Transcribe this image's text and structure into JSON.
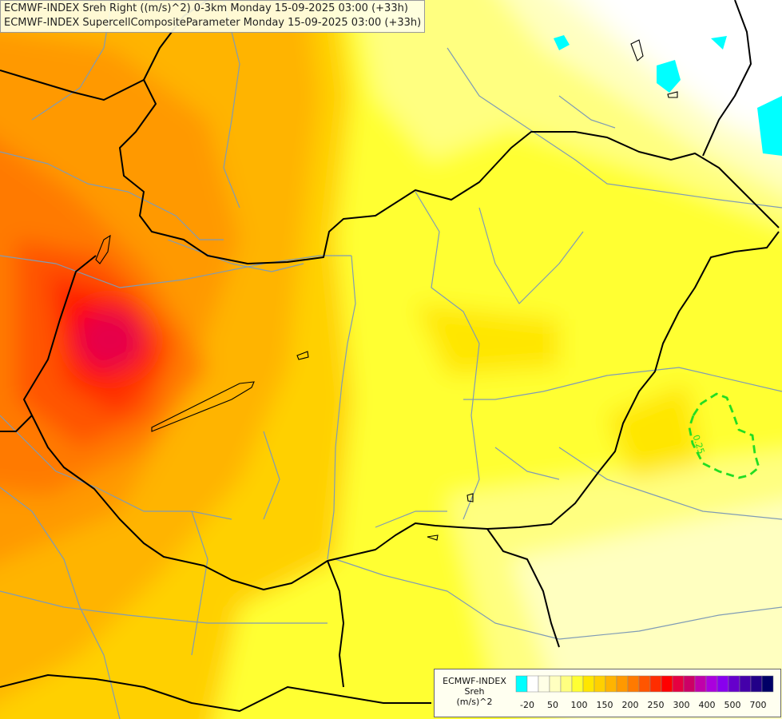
{
  "title_lines": [
    "ECMWF-INDEX Sreh Right ((m/s)^2) 0-3km Monday 15-09-2025 03:00 (+33h)",
    "ECMWF-INDEX SupercellCompositeParameter Monday 15-09-2025 03:00 (+33h)"
  ],
  "legend": {
    "title_lines": [
      "ECMWF-INDEX",
      "Sreh",
      "(m/s)^2"
    ],
    "tick_labels": [
      "-20",
      "50",
      "100",
      "150",
      "200",
      "250",
      "300",
      "400",
      "500",
      "700"
    ],
    "colors": [
      "#00ffff",
      "#ffffff",
      "#ffffe6",
      "#ffffc0",
      "#ffff80",
      "#ffff33",
      "#ffe600",
      "#ffd000",
      "#ffb400",
      "#ff9900",
      "#ff7a00",
      "#ff5500",
      "#ff2d00",
      "#ff0000",
      "#e60040",
      "#cc0066",
      "#c000aa",
      "#aa00dd",
      "#8800ee",
      "#6600cc",
      "#4400aa",
      "#220088",
      "#000066"
    ]
  },
  "contour_label": "0.25",
  "colors": {
    "border": "#000000",
    "rivers": "#7f9bb5",
    "scp_contour": "#22dd22"
  }
}
